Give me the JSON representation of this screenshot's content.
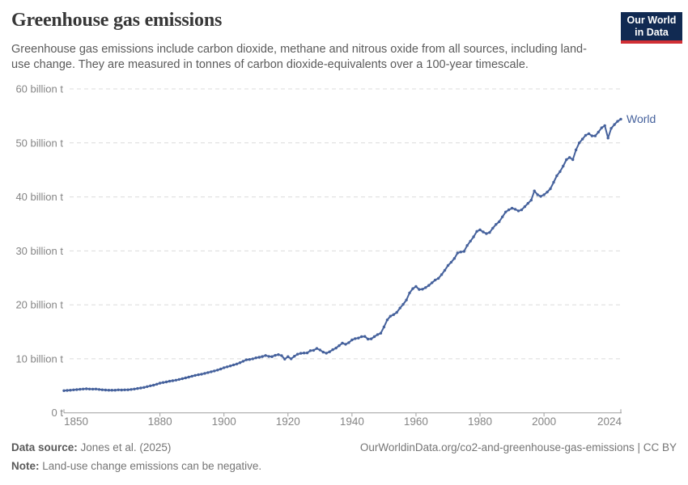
{
  "header": {
    "title": "Greenhouse gas emissions",
    "subtitle": "Greenhouse gas emissions include carbon dioxide, methane and nitrous oxide from all sources, including land-use change. They are measured in tonnes of carbon dioxide-equivalents over a 100-year timescale."
  },
  "logo": {
    "line1": "Our World",
    "line2": "in Data",
    "bg_color": "#112A52",
    "accent_color": "#D12F35"
  },
  "chart_data": {
    "type": "line",
    "title": "Greenhouse gas emissions",
    "unit": "tonnes of CO2-equivalents",
    "xlim": [
      1850,
      2024
    ],
    "ylim": [
      0,
      60
    ],
    "grid": "horizontal-dashed",
    "legend_position": "end-of-line",
    "x_ticks": [
      "1850",
      "1880",
      "1900",
      "1920",
      "1940",
      "1960",
      "1980",
      "2000",
      "2024"
    ],
    "x_tick_years": [
      1850,
      1880,
      1900,
      1920,
      1940,
      1960,
      1980,
      2000,
      2024
    ],
    "y_ticks": [
      {
        "value": 0,
        "label": "0 t"
      },
      {
        "value": 10,
        "label": "10 billion t"
      },
      {
        "value": 20,
        "label": "20 billion t"
      },
      {
        "value": 30,
        "label": "30 billion t"
      },
      {
        "value": 40,
        "label": "40 billion t"
      },
      {
        "value": 50,
        "label": "50 billion t"
      },
      {
        "value": 60,
        "label": "60 billion t"
      }
    ],
    "series": [
      {
        "name": "World",
        "color": "#45619C",
        "x": [
          1850,
          1851,
          1852,
          1853,
          1854,
          1855,
          1856,
          1857,
          1858,
          1859,
          1860,
          1861,
          1862,
          1863,
          1864,
          1865,
          1866,
          1867,
          1868,
          1869,
          1870,
          1871,
          1872,
          1873,
          1874,
          1875,
          1876,
          1877,
          1878,
          1879,
          1880,
          1881,
          1882,
          1883,
          1884,
          1885,
          1886,
          1887,
          1888,
          1889,
          1890,
          1891,
          1892,
          1893,
          1894,
          1895,
          1896,
          1897,
          1898,
          1899,
          1900,
          1901,
          1902,
          1903,
          1904,
          1905,
          1906,
          1907,
          1908,
          1909,
          1910,
          1911,
          1912,
          1913,
          1914,
          1915,
          1916,
          1917,
          1918,
          1919,
          1920,
          1921,
          1922,
          1923,
          1924,
          1925,
          1926,
          1927,
          1928,
          1929,
          1930,
          1931,
          1932,
          1933,
          1934,
          1935,
          1936,
          1937,
          1938,
          1939,
          1940,
          1941,
          1942,
          1943,
          1944,
          1945,
          1946,
          1947,
          1948,
          1949,
          1950,
          1951,
          1952,
          1953,
          1954,
          1955,
          1956,
          1957,
          1958,
          1959,
          1960,
          1961,
          1962,
          1963,
          1964,
          1965,
          1966,
          1967,
          1968,
          1969,
          1970,
          1971,
          1972,
          1973,
          1974,
          1975,
          1976,
          1977,
          1978,
          1979,
          1980,
          1981,
          1982,
          1983,
          1984,
          1985,
          1986,
          1987,
          1988,
          1989,
          1990,
          1991,
          1992,
          1993,
          1994,
          1995,
          1996,
          1997,
          1998,
          1999,
          2000,
          2001,
          2002,
          2003,
          2004,
          2005,
          2006,
          2007,
          2008,
          2009,
          2010,
          2011,
          2012,
          2013,
          2014,
          2015,
          2016,
          2017,
          2018,
          2019,
          2020,
          2021,
          2022,
          2023,
          2024
        ],
        "values": [
          4.1,
          4.15,
          4.2,
          4.25,
          4.3,
          4.35,
          4.4,
          4.45,
          4.4,
          4.38,
          4.4,
          4.32,
          4.27,
          4.22,
          4.2,
          4.2,
          4.2,
          4.25,
          4.22,
          4.25,
          4.27,
          4.32,
          4.4,
          4.5,
          4.6,
          4.7,
          4.85,
          5.0,
          5.12,
          5.3,
          5.5,
          5.62,
          5.72,
          5.85,
          5.95,
          6.05,
          6.18,
          6.32,
          6.47,
          6.62,
          6.78,
          6.93,
          7.05,
          7.15,
          7.3,
          7.45,
          7.6,
          7.75,
          7.92,
          8.12,
          8.35,
          8.52,
          8.68,
          8.88,
          9.05,
          9.28,
          9.55,
          9.82,
          9.88,
          10.0,
          10.18,
          10.28,
          10.42,
          10.62,
          10.45,
          10.4,
          10.65,
          10.78,
          10.6,
          9.95,
          10.4,
          10.0,
          10.48,
          10.85,
          11.02,
          11.08,
          11.1,
          11.52,
          11.58,
          11.92,
          11.65,
          11.25,
          11.05,
          11.3,
          11.7,
          12.0,
          12.45,
          12.9,
          12.7,
          13.0,
          13.5,
          13.75,
          13.85,
          14.1,
          14.15,
          13.65,
          13.7,
          14.1,
          14.5,
          14.75,
          15.9,
          17.2,
          17.9,
          18.2,
          18.6,
          19.4,
          20.1,
          20.9,
          22.2,
          23.0,
          23.4,
          22.85,
          22.9,
          23.2,
          23.6,
          24.1,
          24.6,
          24.9,
          25.6,
          26.4,
          27.3,
          27.9,
          28.6,
          29.6,
          29.8,
          29.9,
          31.0,
          31.8,
          32.6,
          33.6,
          33.9,
          33.5,
          33.2,
          33.4,
          34.2,
          34.9,
          35.4,
          36.3,
          37.2,
          37.6,
          37.9,
          37.7,
          37.4,
          37.6,
          38.2,
          38.8,
          39.4,
          41.1,
          40.4,
          40.1,
          40.4,
          40.9,
          41.5,
          42.7,
          43.9,
          44.7,
          45.7,
          46.9,
          47.3,
          46.9,
          48.7,
          50.0,
          50.7,
          51.4,
          51.7,
          51.3,
          51.3,
          52.0,
          52.8,
          53.2,
          50.9,
          52.7,
          53.4,
          54.0,
          54.4
        ]
      }
    ],
    "colors": {
      "gridline": "#DBDBDB",
      "axis": "#9E9E9E",
      "tick_label": "#858585"
    }
  },
  "footer": {
    "source_label": "Data source:",
    "source_text": " Jones et al. (2025)",
    "attribution": "OurWorldinData.org/co2-and-greenhouse-gas-emissions | CC BY",
    "note_label": "Note:",
    "note_text": " Land-use change emissions can be negative."
  }
}
